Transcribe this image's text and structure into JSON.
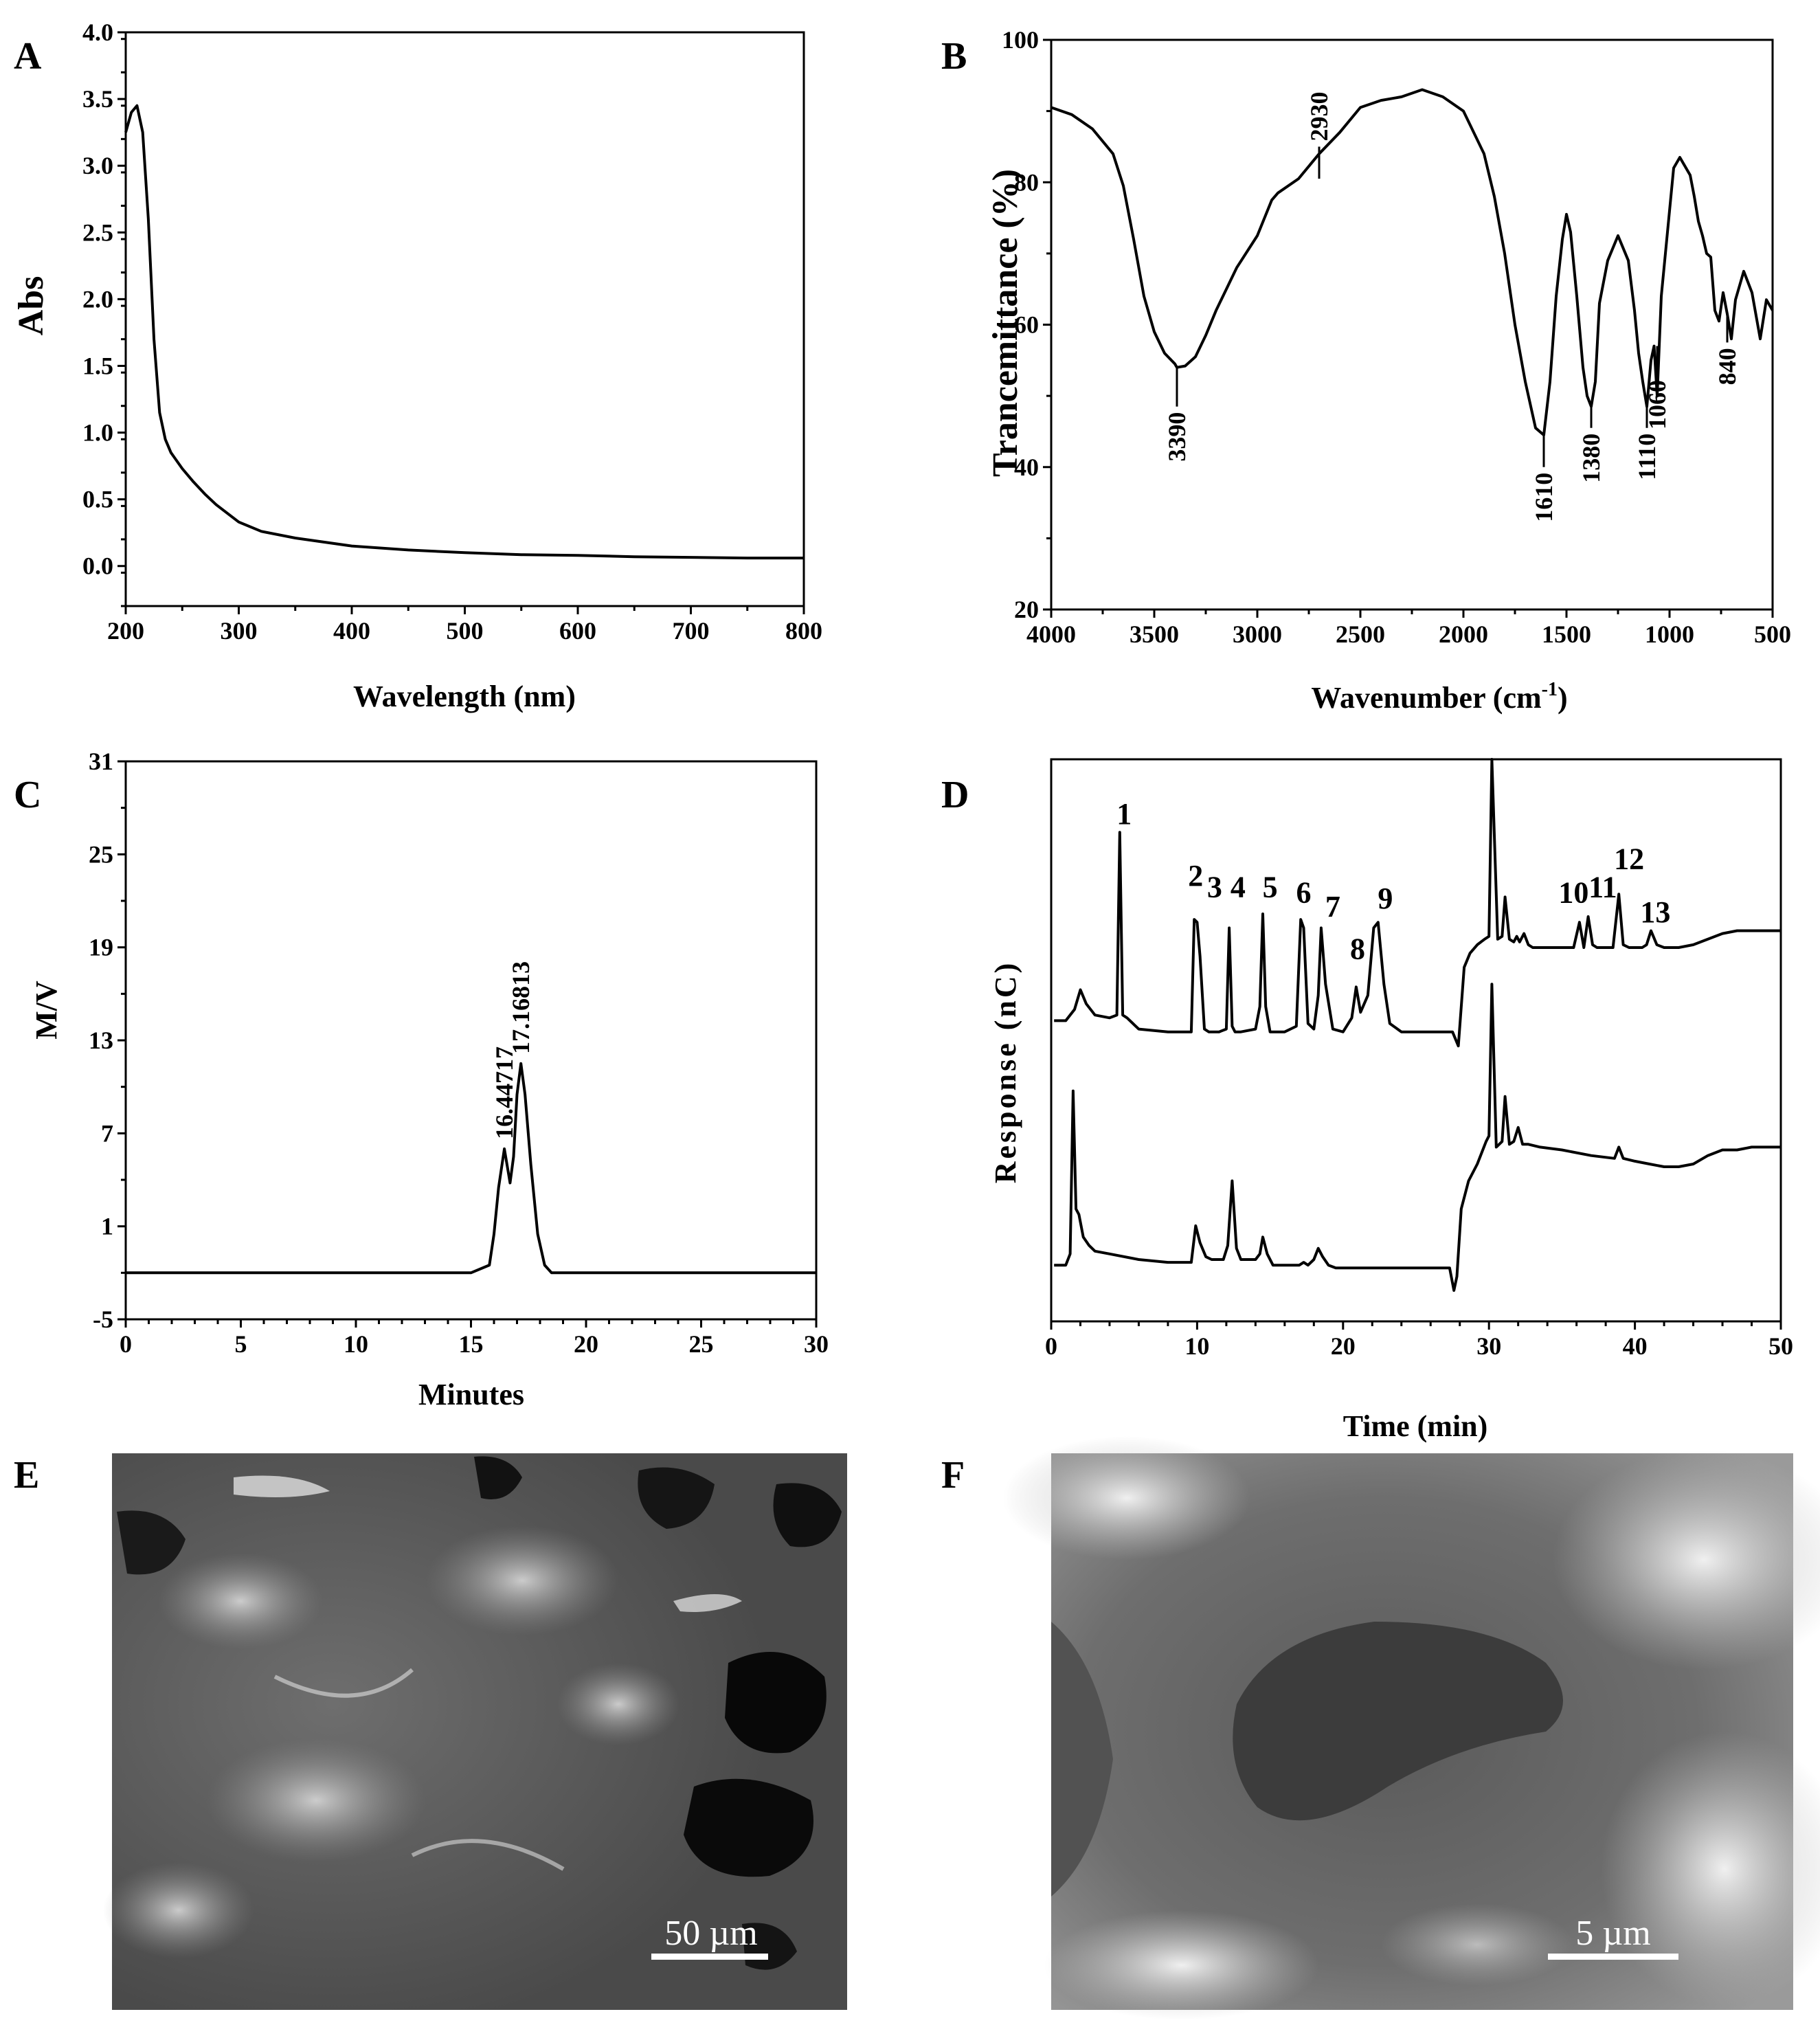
{
  "panels": {
    "A": {
      "letter": "A"
    },
    "B": {
      "letter": "B"
    },
    "C": {
      "letter": "C"
    },
    "D": {
      "letter": "D"
    },
    "E": {
      "letter": "E",
      "scale_bar": "50 µm"
    },
    "F": {
      "letter": "F",
      "scale_bar": "5 µm"
    }
  },
  "chart_data": [
    {
      "id": "A",
      "type": "line",
      "xlabel": "Wavelength (nm)",
      "ylabel": "Abs",
      "xlim": [
        200,
        800
      ],
      "ylim": [
        -0.3,
        4.0
      ],
      "xticks": [
        200,
        300,
        400,
        500,
        600,
        700,
        800
      ],
      "yticks": [
        0.0,
        0.5,
        1.0,
        1.5,
        2.0,
        2.5,
        3.0,
        3.5,
        4.0
      ],
      "ytick_labels": [
        "0.0",
        "0.5",
        "1.0",
        "1.5",
        "2.0",
        "2.5",
        "3.0",
        "3.5",
        "4.0"
      ],
      "x": [
        200,
        205,
        210,
        215,
        220,
        225,
        230,
        235,
        240,
        250,
        260,
        270,
        280,
        300,
        320,
        350,
        400,
        450,
        500,
        550,
        600,
        650,
        700,
        750,
        800
      ],
      "y": [
        3.25,
        3.4,
        3.45,
        3.25,
        2.6,
        1.7,
        1.15,
        0.95,
        0.85,
        0.73,
        0.63,
        0.54,
        0.46,
        0.33,
        0.26,
        0.21,
        0.15,
        0.12,
        0.1,
        0.085,
        0.08,
        0.07,
        0.065,
        0.06,
        0.06
      ]
    },
    {
      "id": "B",
      "type": "line",
      "xlabel": "Wavenumber (cm",
      "xlabel_sup": "-1",
      "xlabel_end": ")",
      "ylabel": "Trancemittance (%)",
      "xlim": [
        4000,
        500
      ],
      "ylim": [
        20,
        100
      ],
      "xticks": [
        4000,
        3500,
        3000,
        2500,
        2000,
        1500,
        1000,
        500
      ],
      "yticks": [
        20,
        40,
        60,
        80,
        100
      ],
      "x": [
        4000,
        3900,
        3800,
        3700,
        3650,
        3600,
        3550,
        3500,
        3450,
        3400,
        3390,
        3350,
        3300,
        3250,
        3200,
        3100,
        3000,
        2930,
        2900,
        2800,
        2700,
        2600,
        2500,
        2400,
        2300,
        2200,
        2100,
        2000,
        1900,
        1850,
        1800,
        1750,
        1700,
        1650,
        1610,
        1580,
        1550,
        1520,
        1500,
        1480,
        1450,
        1420,
        1400,
        1380,
        1360,
        1340,
        1300,
        1250,
        1200,
        1170,
        1150,
        1130,
        1110,
        1090,
        1075,
        1060,
        1040,
        1000,
        980,
        950,
        900,
        880,
        860,
        840,
        820,
        800,
        780,
        760,
        740,
        720,
        700,
        680,
        660,
        640,
        600,
        560,
        530,
        500
      ],
      "y": [
        90.5,
        89.5,
        87.5,
        84.0,
        79.5,
        72.0,
        64.0,
        59.0,
        56.0,
        54.5,
        54.0,
        54.2,
        55.5,
        58.5,
        62.0,
        68.0,
        72.5,
        77.5,
        78.5,
        80.5,
        84.0,
        87.0,
        90.5,
        91.5,
        92.0,
        93.0,
        92.0,
        90.0,
        84.0,
        78.0,
        70.0,
        60.0,
        52.0,
        45.5,
        44.5,
        52.0,
        64.0,
        72.0,
        75.5,
        73.0,
        64.0,
        54.0,
        50.0,
        48.5,
        52.0,
        63.0,
        69.0,
        72.5,
        69.0,
        62.0,
        56.0,
        52.0,
        48.5,
        55.0,
        57.0,
        50.0,
        64.0,
        76.0,
        82.0,
        83.5,
        81.0,
        78.0,
        74.5,
        72.5,
        70.0,
        69.5,
        62.0,
        60.5,
        64.5,
        61.5,
        58.0,
        63.5,
        65.5,
        67.5,
        64.5,
        58.0,
        63.5,
        62.0
      ]
    },
    {
      "id": "C",
      "type": "line",
      "xlabel": "Minutes",
      "ylabel": "M/V",
      "xlim": [
        0,
        30
      ],
      "ylim": [
        -5,
        31
      ],
      "xticks": [
        0,
        5,
        10,
        15,
        20,
        25,
        30
      ],
      "yticks": [
        -5,
        1,
        7,
        13,
        19,
        25,
        31
      ],
      "annotations": [
        {
          "text": "16.44717",
          "x": 16.45,
          "y": 6.0
        },
        {
          "text": "17.16813",
          "x": 17.17,
          "y": 11.5
        }
      ],
      "x": [
        0,
        5,
        10,
        15,
        15.8,
        16.0,
        16.2,
        16.45,
        16.7,
        16.85,
        17.0,
        17.17,
        17.35,
        17.6,
        17.9,
        18.2,
        18.5,
        20,
        25,
        30
      ],
      "y": [
        -2.0,
        -2.0,
        -2.0,
        -2.0,
        -1.5,
        0.5,
        3.5,
        6.0,
        3.8,
        5.5,
        9.5,
        11.5,
        9.5,
        5.0,
        0.5,
        -1.5,
        -2.0,
        -2.0,
        -2.0,
        -2.0
      ]
    },
    {
      "id": "D",
      "type": "line",
      "xlabel": "Time (min)",
      "ylabel": "Response (nC)",
      "xlim": [
        0,
        50
      ],
      "ylim": [
        0,
        100
      ],
      "xticks": [
        0,
        10,
        20,
        30,
        40,
        50
      ],
      "peak_labels": [
        {
          "text": "1",
          "x": 5.0,
          "y": 88.5
        },
        {
          "text": "2",
          "x": 9.9,
          "y": 77.5
        },
        {
          "text": "3",
          "x": 11.2,
          "y": 75.5
        },
        {
          "text": "4",
          "x": 12.8,
          "y": 75.5
        },
        {
          "text": "5",
          "x": 15.0,
          "y": 75.5
        },
        {
          "text": "6",
          "x": 17.3,
          "y": 74.5
        },
        {
          "text": "7",
          "x": 19.3,
          "y": 72.0
        },
        {
          "text": "8",
          "x": 21.0,
          "y": 64.5
        },
        {
          "text": "9",
          "x": 22.9,
          "y": 73.5
        },
        {
          "text": "10",
          "x": 35.8,
          "y": 74.5
        },
        {
          "text": "11",
          "x": 37.8,
          "y": 75.5
        },
        {
          "text": "12",
          "x": 39.6,
          "y": 80.5
        },
        {
          "text": "13",
          "x": 41.4,
          "y": 71.0
        }
      ],
      "series": [
        {
          "x": [
            0.2,
            1.0,
            1.6,
            2.0,
            2.4,
            3.0,
            4.0,
            4.5,
            4.7,
            4.9,
            5.2,
            6.0,
            8.0,
            9.6,
            9.8,
            10.0,
            10.2,
            10.5,
            10.8,
            11.5,
            12.0,
            12.2,
            12.4,
            12.6,
            13.0,
            14.0,
            14.3,
            14.5,
            14.7,
            15.0,
            16.0,
            16.8,
            17.1,
            17.3,
            17.6,
            18.0,
            18.3,
            18.5,
            18.8,
            19.3,
            20.0,
            20.6,
            20.9,
            21.2,
            21.7,
            22.1,
            22.4,
            22.8,
            23.2,
            24.0,
            26.0,
            27.5,
            27.9,
            28.3,
            28.7,
            29.2,
            29.7,
            30.0,
            30.2,
            30.6,
            30.9,
            31.1,
            31.4,
            31.7,
            31.9,
            32.1,
            32.4,
            32.7,
            33.0,
            34.0,
            35.0,
            35.8,
            36.2,
            36.5,
            36.8,
            37.1,
            37.4,
            37.8,
            38.5,
            38.9,
            39.2,
            39.6,
            40.0,
            40.5,
            40.8,
            41.1,
            41.5,
            42.0,
            43.0,
            44.0,
            45.0,
            46.0,
            47.0,
            48.0,
            49.0,
            50.0
          ],
          "y": [
            53.5,
            53.5,
            55.5,
            59.0,
            56.5,
            54.5,
            54.0,
            54.5,
            87.0,
            54.5,
            54.0,
            52.0,
            51.5,
            51.5,
            71.5,
            71.0,
            65.0,
            52.0,
            51.5,
            51.5,
            52.0,
            70.0,
            52.5,
            51.5,
            51.5,
            52.0,
            56.0,
            72.5,
            56.0,
            51.5,
            51.5,
            52.5,
            71.5,
            70.0,
            53.0,
            52.0,
            58.0,
            70.0,
            60.0,
            52.0,
            51.5,
            54.0,
            59.5,
            55.0,
            58.0,
            70.0,
            71.0,
            60.0,
            53.0,
            51.5,
            51.5,
            51.5,
            49.0,
            63.0,
            65.5,
            67.0,
            68.0,
            68.5,
            100.0,
            68.0,
            68.5,
            75.5,
            68.0,
            67.5,
            68.5,
            67.5,
            69.0,
            67.0,
            66.5,
            66.5,
            66.5,
            66.5,
            71.0,
            66.5,
            72.0,
            67.0,
            66.5,
            66.5,
            66.5,
            76.0,
            67.0,
            66.5,
            66.5,
            66.5,
            67.0,
            69.5,
            67.0,
            66.5,
            66.5,
            67.0,
            68.0,
            69.0,
            69.5,
            69.5,
            69.5,
            69.5
          ]
        },
        {
          "x": [
            0.2,
            1.0,
            1.3,
            1.5,
            1.7,
            1.9,
            2.2,
            2.6,
            3.0,
            4.0,
            6.0,
            8.0,
            9.6,
            9.9,
            10.2,
            10.6,
            11.0,
            11.8,
            12.1,
            12.4,
            12.7,
            13.0,
            14.0,
            14.3,
            14.5,
            14.8,
            15.2,
            16.0,
            17.0,
            17.3,
            17.6,
            18.0,
            18.3,
            18.6,
            19.0,
            19.5,
            21.0,
            24.0,
            27.3,
            27.6,
            27.8,
            28.1,
            28.6,
            29.2,
            29.8,
            30.0,
            30.2,
            30.5,
            30.9,
            31.1,
            31.4,
            31.7,
            32.0,
            32.3,
            32.7,
            33.5,
            35.0,
            37.0,
            38.6,
            38.9,
            39.2,
            40.0,
            41.0,
            42.0,
            43.0,
            44.0,
            45.0,
            46.0,
            47.0,
            48.0,
            49.0,
            50.0
          ],
          "y": [
            10.0,
            10.0,
            12.0,
            41.0,
            20.0,
            19.0,
            15.0,
            13.5,
            12.5,
            12.0,
            11.0,
            10.5,
            10.5,
            17.0,
            14.0,
            11.5,
            11.0,
            11.0,
            13.5,
            25.0,
            13.0,
            11.0,
            11.0,
            12.0,
            15.0,
            12.0,
            10.0,
            10.0,
            10.0,
            10.5,
            10.0,
            11.0,
            13.0,
            11.5,
            10.0,
            9.5,
            9.5,
            9.5,
            9.5,
            5.5,
            8.0,
            20.0,
            25.0,
            28.0,
            32.0,
            33.0,
            60.0,
            31.0,
            32.0,
            40.0,
            31.5,
            32.0,
            34.5,
            31.5,
            31.5,
            31.0,
            30.5,
            29.5,
            29.0,
            31.0,
            29.0,
            28.5,
            28.0,
            27.5,
            27.5,
            28.0,
            29.5,
            30.5,
            30.5,
            31.0,
            31.0,
            31.0
          ]
        }
      ]
    }
  ]
}
